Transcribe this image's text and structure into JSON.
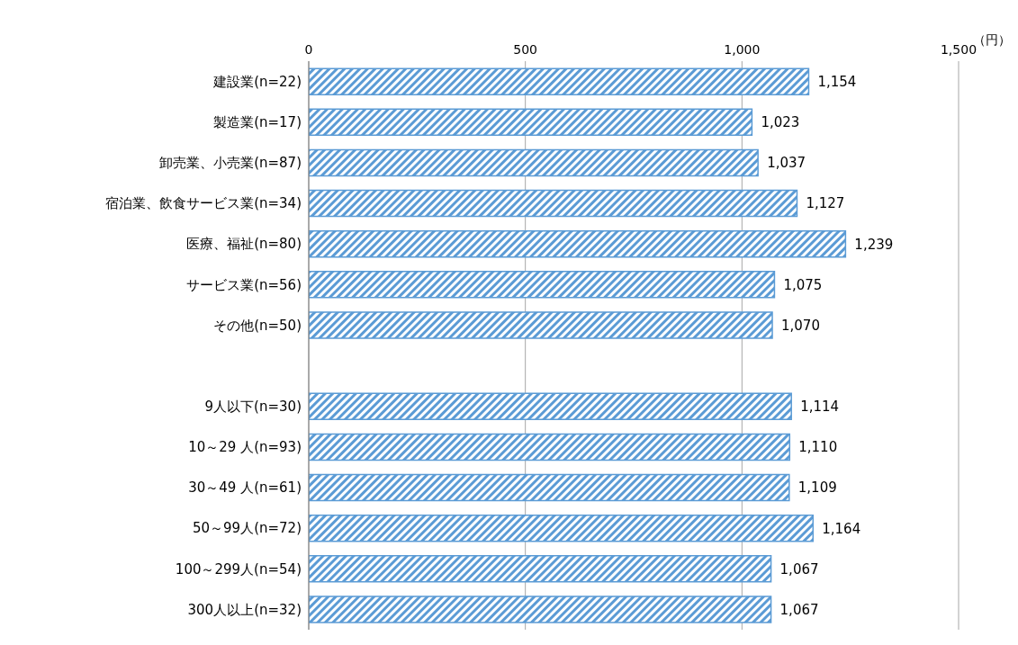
{
  "chart_data": {
    "type": "bar",
    "orientation": "horizontal",
    "categories": [
      "建設業(n=22)",
      "製造業(n=17)",
      "卸売業、小売業(n=87)",
      "宿泊業、飲食サービス業(n=34)",
      "医療、福祉(n=80)",
      "サービス業(n=56)",
      "その他(n=50)",
      null,
      "9人以下(n=30)",
      "10～29 人(n=93)",
      "30～49 人(n=61)",
      "50～99人(n=72)",
      "100～299人(n=54)",
      "300人以上(n=32)"
    ],
    "values": [
      1154,
      1023,
      1037,
      1127,
      1239,
      1075,
      1070,
      null,
      1114,
      1110,
      1109,
      1164,
      1067,
      1067
    ],
    "value_labels": [
      "1,154",
      "1,023",
      "1,037",
      "1,127",
      "1,239",
      "1,075",
      "1,070",
      null,
      "1,114",
      "1,110",
      "1,109",
      "1,164",
      "1,067",
      "1,067"
    ],
    "color": "#5b9bd5",
    "xlim": [
      0,
      1500
    ],
    "xticks": [
      0,
      500,
      {
        "value": 1000,
        "label": "1,000"
      },
      {
        "value": 1500,
        "label": "1,500"
      }
    ],
    "grid": "x",
    "annotations": [
      "（円）"
    ]
  }
}
